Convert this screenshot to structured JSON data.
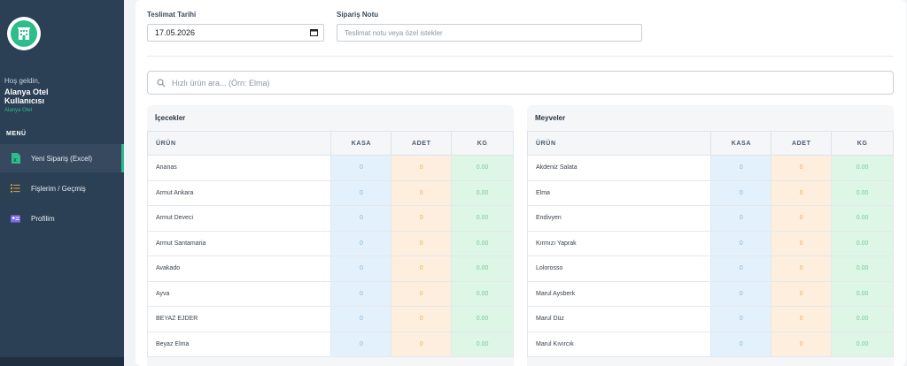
{
  "sidebar": {
    "welcome": "Hoş geldin,",
    "user_name": "Alanya Otel Kullanıcısı",
    "hotel": "Alanya Otel",
    "menu_title": "MENÜ",
    "items": [
      {
        "label": "Yeni Sipariş (Excel)",
        "icon": "excel-icon",
        "active": true
      },
      {
        "label": "Fişlerim / Geçmiş",
        "icon": "list-icon",
        "active": false
      },
      {
        "label": "Profilim",
        "icon": "id-card-icon",
        "active": false
      }
    ]
  },
  "form": {
    "date_label": "Teslimat Tarihi",
    "date_value": "17.05.2026",
    "note_label": "Sipariş Notu",
    "note_placeholder": "Teslimat notu veya özel istekler"
  },
  "search": {
    "placeholder": "Hızlı ürün ara... (Örn: Elma)"
  },
  "columns": {
    "urun": "ÜRÜN",
    "kasa": "KASA",
    "adet": "ADET",
    "kg": "KG"
  },
  "panels": [
    {
      "title": "İçecekler",
      "rows": [
        {
          "name": "Ananas",
          "kasa": "0",
          "adet": "0",
          "kg": "0.00"
        },
        {
          "name": "Armut Ankara",
          "kasa": "0",
          "adet": "0",
          "kg": "0.00"
        },
        {
          "name": "Armut Deveci",
          "kasa": "0",
          "adet": "0",
          "kg": "0.00"
        },
        {
          "name": "Armut Santamaria",
          "kasa": "0",
          "adet": "0",
          "kg": "0.00"
        },
        {
          "name": "Avakado",
          "kasa": "0",
          "adet": "0",
          "kg": "0.00"
        },
        {
          "name": "Ayva",
          "kasa": "0",
          "adet": "0",
          "kg": "0.00"
        },
        {
          "name": "BEYAZ EJDER",
          "kasa": "0",
          "adet": "0",
          "kg": "0.00"
        },
        {
          "name": "Beyaz Elma",
          "kasa": "0",
          "adet": "0",
          "kg": "0.00"
        }
      ]
    },
    {
      "title": "Meyveler",
      "rows": [
        {
          "name": "Akdeniz Salata",
          "kasa": "0",
          "adet": "0",
          "kg": "0.00"
        },
        {
          "name": "Elma",
          "kasa": "0",
          "adet": "0",
          "kg": "0.00"
        },
        {
          "name": "Endivyen",
          "kasa": "0",
          "adet": "0",
          "kg": "0.00"
        },
        {
          "name": "Kırmızı Yaprak",
          "kasa": "0",
          "adet": "0",
          "kg": "0.00"
        },
        {
          "name": "Lolorosso",
          "kasa": "0",
          "adet": "0",
          "kg": "0.00"
        },
        {
          "name": "Marul Aysberk",
          "kasa": "0",
          "adet": "0",
          "kg": "0.00"
        },
        {
          "name": "Marul Düz",
          "kasa": "0",
          "adet": "0",
          "kg": "0.00"
        },
        {
          "name": "Marul Kıvırcık",
          "kasa": "0",
          "adet": "0",
          "kg": "0.00"
        }
      ]
    }
  ],
  "colors": {
    "sidebar": "#2b3f55",
    "accent": "#2dbd8c",
    "kasa": "#e3f1fc",
    "adet": "#fdeedd",
    "kg": "#def6e6"
  }
}
